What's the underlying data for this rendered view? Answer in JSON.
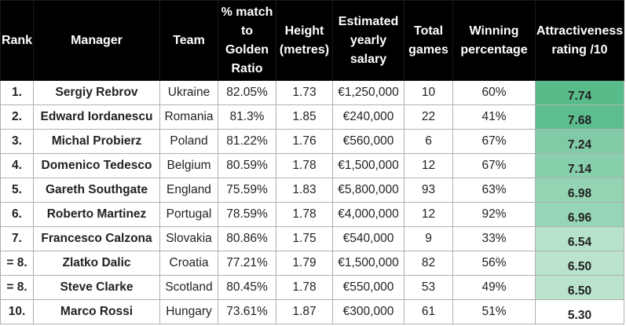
{
  "headers": [
    "Rank",
    "Manager",
    "Team",
    "% match to Golden Ratio",
    "Height (metres)",
    "Estimated yearly salary",
    "Total games",
    "Winning percentage",
    "Attractiveness rating /10"
  ],
  "rows": [
    {
      "rank": "1.",
      "manager": "Sergiy Rebrov",
      "team": "Ukraine",
      "golden": "82.05%",
      "height": "1.73",
      "salary": "€1,250,000",
      "games": "10",
      "win": "60%",
      "rating": "7.74",
      "rating_color": "#57bb8a"
    },
    {
      "rank": "2.",
      "manager": "Edward Iordanescu",
      "team": "Romania",
      "golden": "81.3%",
      "height": "1.85",
      "salary": "€240,000",
      "games": "22",
      "win": "41%",
      "rating": "7.68",
      "rating_color": "#5dbd8e"
    },
    {
      "rank": "3.",
      "manager": "Michal Probierz",
      "team": "Poland",
      "golden": "81.22%",
      "height": "1.76",
      "salary": "€560,000",
      "games": "6",
      "win": "67%",
      "rating": "7.24",
      "rating_color": "#80cba5"
    },
    {
      "rank": "4.",
      "manager": "Domenico Tedesco",
      "team": "Belgium",
      "golden": "80.59%",
      "height": "1.78",
      "salary": "€1,500,000",
      "games": "12",
      "win": "67%",
      "rating": "7.14",
      "rating_color": "#88cfab"
    },
    {
      "rank": "5.",
      "manager": "Gareth Southgate",
      "team": "England",
      "golden": "75.59%",
      "height": "1.83",
      "salary": "€5,800,000",
      "games": "93",
      "win": "63%",
      "rating": "6.98",
      "rating_color": "#94d4b3"
    },
    {
      "rank": "6.",
      "manager": "Roberto Martinez",
      "team": "Portugal",
      "golden": "78.59%",
      "height": "1.78",
      "salary": "€4,000,000",
      "games": "12",
      "win": "92%",
      "rating": "6.96",
      "rating_color": "#96d5b5"
    },
    {
      "rank": "7.",
      "manager": "Francesco Calzona",
      "team": "Slovakia",
      "golden": "80.86%",
      "height": "1.75",
      "salary": "€540,000",
      "games": "9",
      "win": "33%",
      "rating": "6.54",
      "rating_color": "#b6e2cb"
    },
    {
      "rank": "= 8.",
      "manager": "Zlatko Dalic",
      "team": "Croatia",
      "golden": "77.21%",
      "height": "1.79",
      "salary": "€1,500,000",
      "games": "82",
      "win": "56%",
      "rating": "6.50",
      "rating_color": "#b9e3cd"
    },
    {
      "rank": "= 8.",
      "manager": "Steve Clarke",
      "team": "Scotland",
      "golden": "80.45%",
      "height": "1.78",
      "salary": "€550,000",
      "games": "53",
      "win": "49%",
      "rating": "6.50",
      "rating_color": "#b9e3cd"
    },
    {
      "rank": "10.",
      "manager": "Marco Rossi",
      "team": "Hungary",
      "golden": "73.61%",
      "height": "1.87",
      "salary": "€300,000",
      "games": "61",
      "win": "51%",
      "rating": "5.30",
      "rating_color": "#ffffff"
    }
  ]
}
